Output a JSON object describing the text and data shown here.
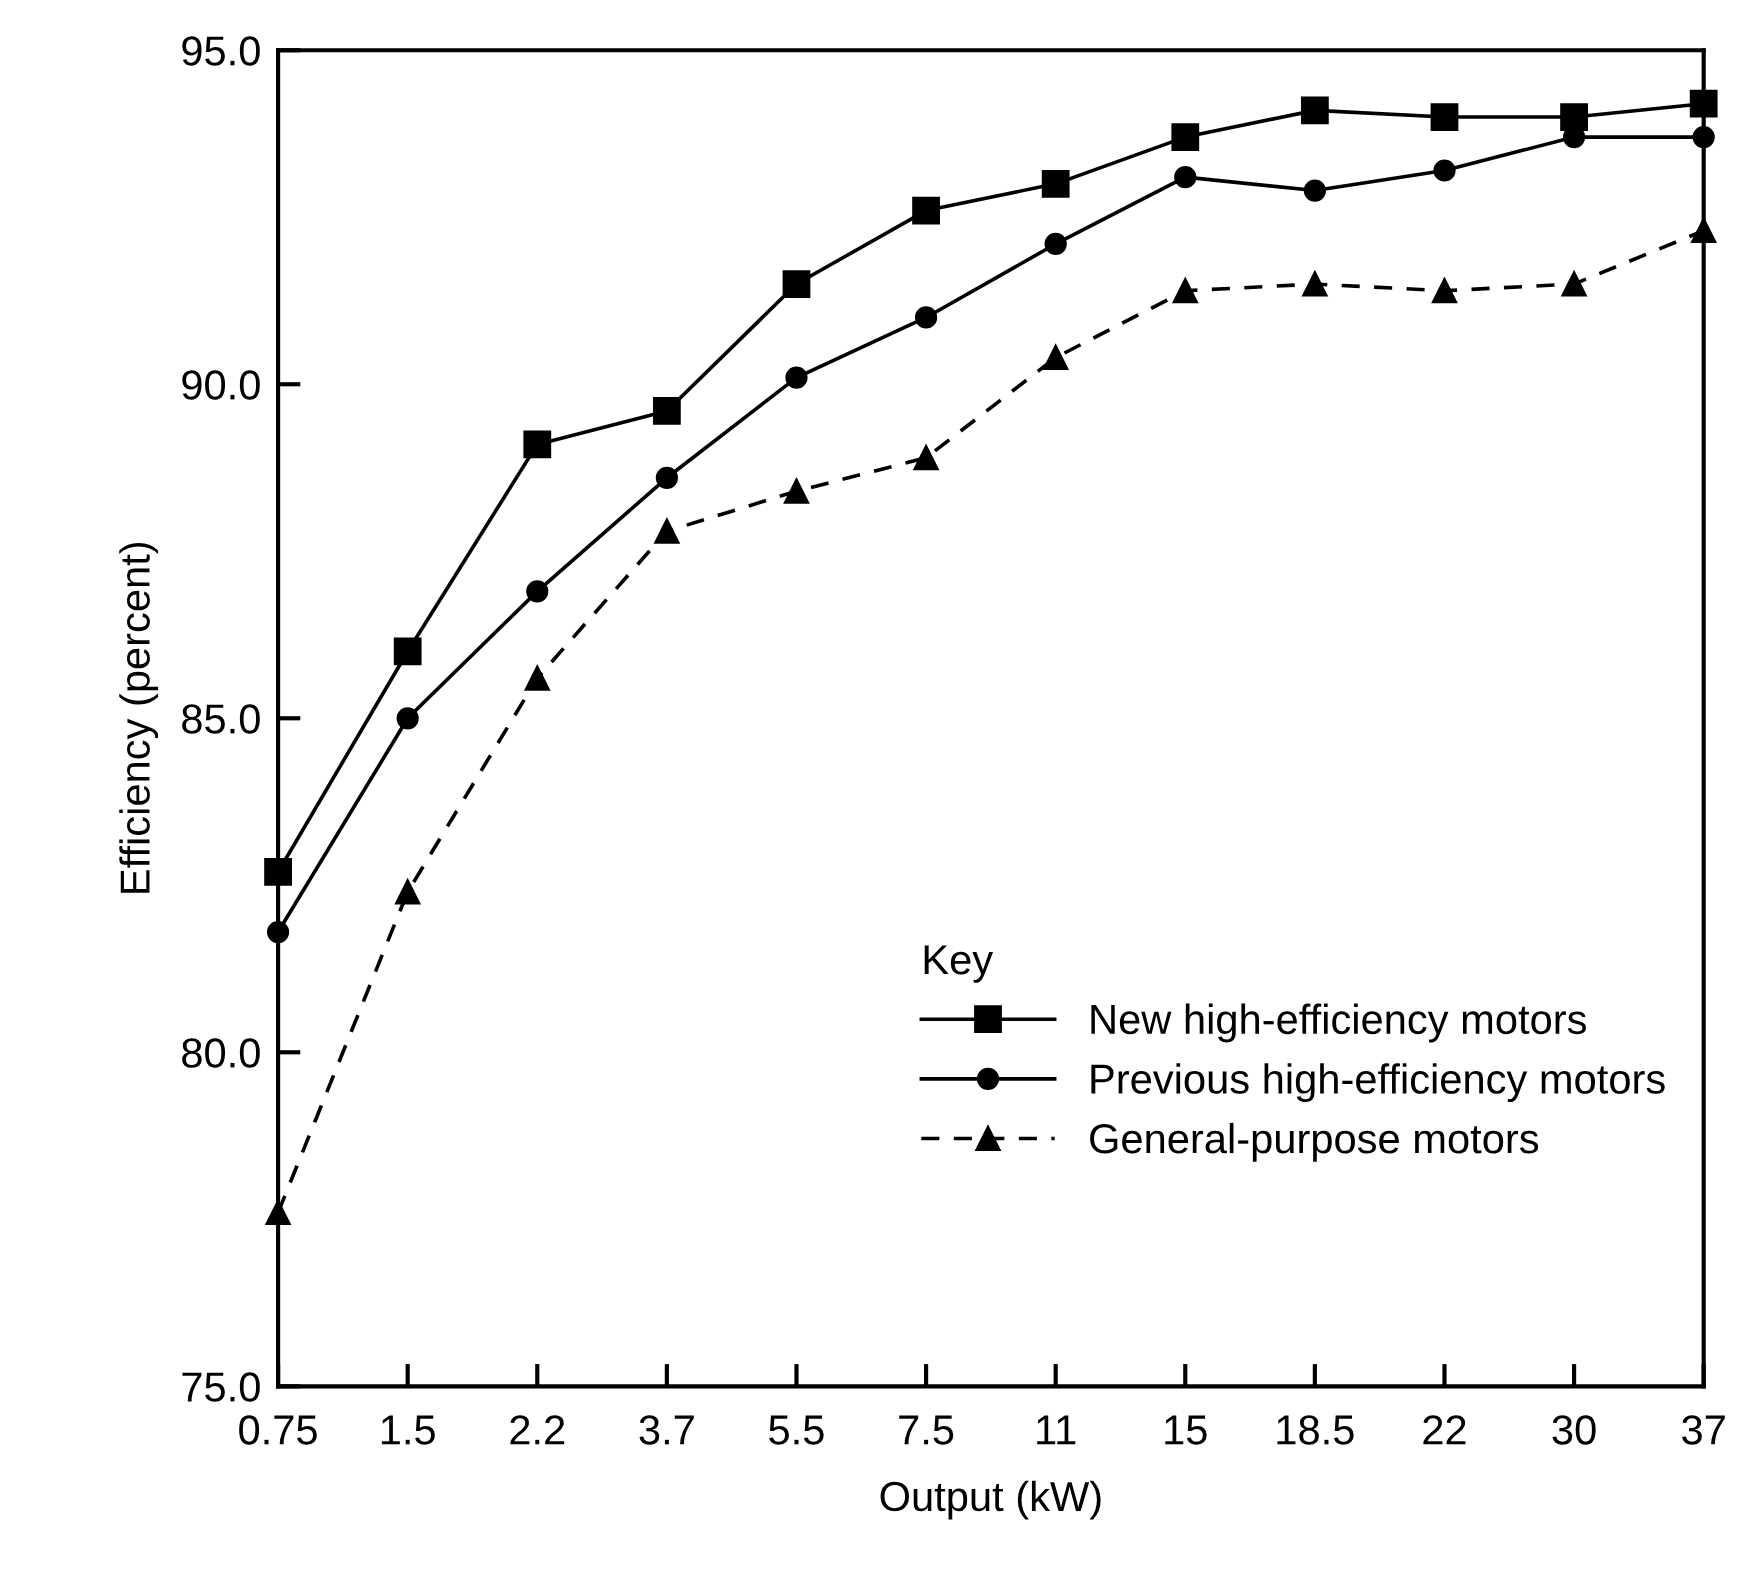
{
  "chart_data": {
    "type": "line",
    "xlabel": "Output (kW)",
    "ylabel": "Efficiency (percent)",
    "legend_title": "Key",
    "legend": "lower right",
    "grid": false,
    "categories": [
      "0.75",
      "1.5",
      "2.2",
      "3.7",
      "5.5",
      "7.5",
      "11",
      "15",
      "18.5",
      "22",
      "30",
      "37"
    ],
    "ylim": [
      75,
      95
    ],
    "yticks": [
      {
        "value": 75,
        "label": "75.0"
      },
      {
        "value": 80,
        "label": "80.0"
      },
      {
        "value": 85,
        "label": "85.0"
      },
      {
        "value": 90,
        "label": "90.0"
      },
      {
        "value": 95,
        "label": "95.0"
      }
    ],
    "series": [
      {
        "name": "New high-efficiency motors",
        "color": "#000000",
        "marker": "square",
        "line_style": "solid",
        "values": [
          82.7,
          86.0,
          89.1,
          89.6,
          91.5,
          92.6,
          93.0,
          93.7,
          94.1,
          94.0,
          94.0,
          94.2
        ]
      },
      {
        "name": "Previous high-efficiency motors",
        "color": "#000000",
        "marker": "circle",
        "line_style": "solid",
        "values": [
          81.8,
          85.0,
          86.9,
          88.6,
          90.1,
          91.0,
          92.1,
          93.1,
          92.9,
          93.2,
          93.7,
          93.7
        ]
      },
      {
        "name": "General-purpose motors",
        "color": "#000000",
        "marker": "triangle",
        "line_style": "dashed",
        "values": [
          77.6,
          82.4,
          85.6,
          87.8,
          88.4,
          88.9,
          90.4,
          91.4,
          91.5,
          91.4,
          91.5,
          92.3
        ]
      }
    ]
  }
}
